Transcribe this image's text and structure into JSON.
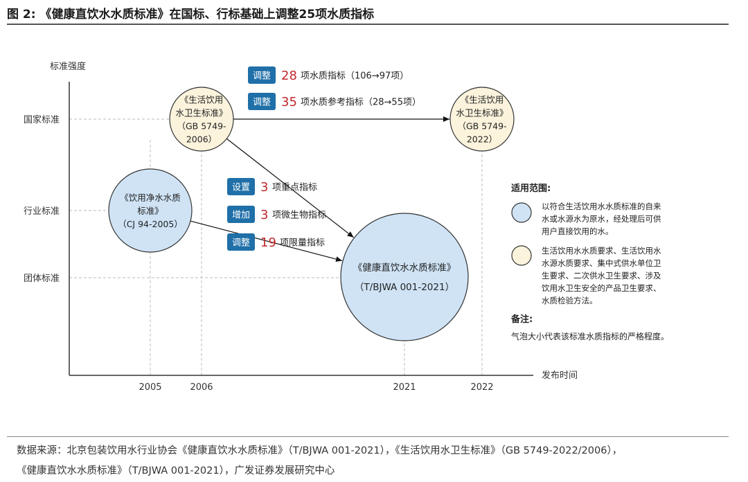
{
  "title": "图 2:  《健康直饮水水质标准》在国标、行标基础上调整25项水质指标",
  "chart_data": {
    "type": "bubble-timeline",
    "ylabel": "标准强度",
    "xlabel": "发布时间",
    "y_levels": [
      "国家标准",
      "行业标准",
      "团体标准"
    ],
    "x_ticks": [
      "2005",
      "2006",
      "2021",
      "2022"
    ],
    "bubbles": [
      {
        "lines": [
          "《生活饮用",
          "水卫生标准》",
          "（GB 5749-",
          "2006）"
        ],
        "year": "2006",
        "level": "国家标准",
        "size": "small",
        "color": "#fbf3dc"
      },
      {
        "lines": [
          "《生活饮用",
          "水卫生标准》",
          "（GB 5749-",
          "2022）"
        ],
        "year": "2022",
        "level": "国家标准",
        "size": "small",
        "color": "#fbf3dc"
      },
      {
        "lines": [
          "《饮用净水水质",
          "标准》",
          "（CJ 94-2005）"
        ],
        "year": "2005",
        "level": "行业标准",
        "size": "medium",
        "color": "#cfe3f5"
      },
      {
        "lines": [
          "《健康直饮水水质标准》",
          "（T/BJWA 001-2021）"
        ],
        "year": "2021",
        "level": "团体标准",
        "size": "large",
        "color": "#cfe3f5"
      }
    ],
    "arrows": [
      {
        "from": "GB 5749-2006",
        "to": "GB 5749-2022"
      },
      {
        "from": "GB 5749-2006",
        "to": "T/BJWA 001-2021"
      },
      {
        "from": "CJ 94-2005",
        "to": "T/BJWA 001-2021"
      }
    ],
    "annotations_top": [
      {
        "tag": "调整",
        "num": "28",
        "text": "项水质指标（106→97项）"
      },
      {
        "tag": "调整",
        "num": "35",
        "text": "项水质参考指标（28→55项）"
      }
    ],
    "annotations_mid": [
      {
        "tag": "设置",
        "num": "3",
        "text": "项重点指标"
      },
      {
        "tag": "增加",
        "num": "3",
        "text": "项微生物指标"
      },
      {
        "tag": "调整",
        "num": "19",
        "text": "项限量指标"
      }
    ],
    "legend": {
      "title": "适用范围:",
      "items": [
        {
          "color": "#cfe3f5",
          "lines": [
            "以符合生活饮用水水质标准的自来",
            "水或水源水为原水，经处理后可供",
            "用户直接饮用的水。"
          ]
        },
        {
          "color": "#fbf3dc",
          "lines": [
            "生活饮用水水质要求、生活饮用水",
            "水源水质要求、集中式供水单位卫",
            "生要求、二次供水卫生要求、涉及",
            "饮用水卫生安全的产品卫生要求、",
            "水质检验方法。"
          ]
        }
      ],
      "note_title": "备注:",
      "note": "气泡大小代表该标准水质指标的严格程度。"
    },
    "colors": {
      "tag_bg": "#1f6fa8",
      "number": "#c0282d",
      "grid": "#bbbbbb",
      "axis": "#333333",
      "bubble_stroke": "#333333"
    }
  },
  "source": {
    "line1": "数据来源：北京包装饮用水行业协会《健康直饮水水质标准》（T/BJWA 001-2021），《生活饮用水卫生标准》（GB 5749-2022/2006），",
    "line2": "《健康直饮水水质标准》（T/BJWA 001-2021），广发证券发展研究中心"
  }
}
